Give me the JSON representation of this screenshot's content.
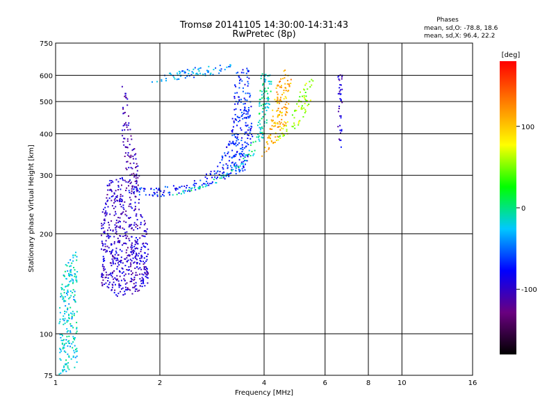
{
  "chart_data": {
    "type": "scatter",
    "title": "Tromsø 20141105 14:30:00-14:31:43",
    "subtitle": "RwPretec (8p)",
    "xlabel": "Frequency [MHz]",
    "ylabel": "Stationary phase Virtual Height [km]",
    "x_scale": "log",
    "y_scale": "log",
    "xlim": [
      1,
      16
    ],
    "ylim": [
      75,
      750
    ],
    "x_ticks": [
      1,
      2,
      4,
      6,
      8,
      10,
      16
    ],
    "y_ticks": [
      75,
      100,
      200,
      300,
      400,
      500,
      600,
      750
    ],
    "grid": true,
    "stats": {
      "title": "Phases",
      "o_line": "mean, sd,O:  -78.8, 18.6",
      "x_line": "mean, sd,X:  96.4, 22.2"
    },
    "colorbar": {
      "label": "[deg]",
      "range": [
        -180,
        180
      ],
      "ticks": [
        100,
        0,
        -100
      ],
      "colors": [
        "#000000",
        "#6a0080",
        "#0000ff",
        "#00c8ff",
        "#00ff00",
        "#ffff00",
        "#ff8000",
        "#ff0000"
      ]
    },
    "traces": [
      {
        "kind": "band",
        "points": [
          [
            1.35,
            140
          ],
          [
            1.35,
            220
          ],
          [
            1.4,
            290
          ],
          [
            1.6,
            300
          ],
          [
            1.7,
            280
          ],
          [
            1.85,
            200
          ],
          [
            1.85,
            140
          ],
          [
            1.65,
            130
          ],
          [
            1.5,
            130
          ]
        ],
        "phase": -100
      },
      {
        "kind": "band",
        "points": [
          [
            1.5,
            280
          ],
          [
            1.9,
            275
          ],
          [
            2.4,
            285
          ],
          [
            2.9,
            320
          ],
          [
            3.2,
            400
          ],
          [
            3.3,
            620
          ],
          [
            3.6,
            640
          ],
          [
            3.7,
            400
          ],
          [
            3.5,
            310
          ],
          [
            3,
            290
          ],
          [
            2.5,
            270
          ],
          [
            2,
            260
          ],
          [
            1.6,
            265
          ]
        ],
        "phase": -70
      },
      {
        "kind": "band",
        "points": [
          [
            2.1,
            260
          ],
          [
            2.5,
            270
          ],
          [
            3,
            290
          ],
          [
            3.4,
            320
          ],
          [
            3.8,
            350
          ],
          [
            4.1,
            420
          ],
          [
            4.2,
            600
          ],
          [
            3.9,
            620
          ],
          [
            3.8,
            400
          ],
          [
            3.4,
            330
          ],
          [
            2.8,
            290
          ],
          [
            2.3,
            270
          ]
        ],
        "phase": -10
      },
      {
        "kind": "band",
        "points": [
          [
            3.8,
            330
          ],
          [
            4.3,
            380
          ],
          [
            4.6,
            420
          ],
          [
            4.8,
            600
          ],
          [
            4.5,
            640
          ],
          [
            4.3,
            560
          ],
          [
            4.1,
            400
          ],
          [
            3.9,
            340
          ]
        ],
        "phase": 110
      },
      {
        "kind": "band",
        "points": [
          [
            1.85,
            570
          ],
          [
            2.4,
            590
          ],
          [
            3,
            610
          ],
          [
            3.3,
            630
          ],
          [
            3.2,
            650
          ],
          [
            2.6,
            640
          ],
          [
            2.1,
            610
          ],
          [
            1.9,
            590
          ]
        ],
        "phase": -40
      },
      {
        "kind": "band",
        "points": [
          [
            4.3,
            380
          ],
          [
            5,
            420
          ],
          [
            5.5,
            520
          ],
          [
            5.6,
            600
          ],
          [
            5.2,
            580
          ],
          [
            4.8,
            460
          ],
          [
            4.4,
            400
          ]
        ],
        "phase": 60
      },
      {
        "kind": "band",
        "points": [
          [
            1.6,
            560
          ],
          [
            1.65,
            400
          ],
          [
            1.75,
            300
          ],
          [
            1.7,
            250
          ],
          [
            1.6,
            300
          ],
          [
            1.55,
            400
          ],
          [
            1.55,
            560
          ]
        ],
        "phase": -110
      },
      {
        "kind": "band",
        "points": [
          [
            6.5,
            600
          ],
          [
            6.7,
            610
          ],
          [
            6.7,
            360
          ],
          [
            6.5,
            380
          ]
        ],
        "phase": -95
      },
      {
        "kind": "band",
        "points": [
          [
            1.02,
            75
          ],
          [
            1.15,
            80
          ],
          [
            1.15,
            180
          ],
          [
            1.05,
            160
          ],
          [
            1.02,
            120
          ]
        ],
        "phase": -20
      }
    ]
  }
}
